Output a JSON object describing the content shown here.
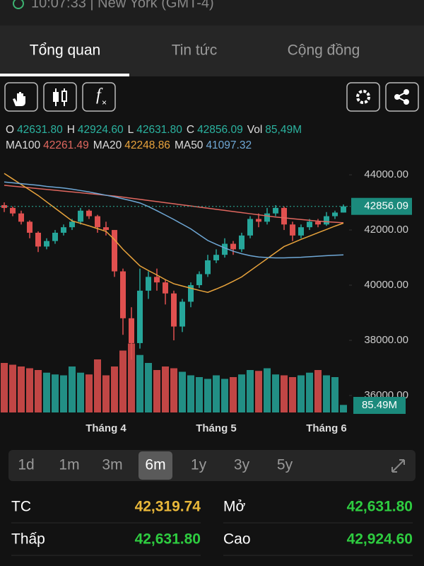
{
  "status": "10:07:33 | New York (GMT-4)",
  "tabs": [
    "Tổng quan",
    "Tin tức",
    "Cộng đồng"
  ],
  "toolbar": {
    "formula": "f"
  },
  "ohlc_legend": [
    {
      "key": "O",
      "value": "42631.80"
    },
    {
      "key": "H",
      "value": "42924.60"
    },
    {
      "key": "L",
      "value": "42631.80"
    },
    {
      "key": "C",
      "value": "42856.09"
    },
    {
      "key": "Vol",
      "value": "85,49M"
    }
  ],
  "chart_data": {
    "type": "candlestick",
    "categories": [
      null,
      null,
      null,
      null,
      null,
      null,
      null,
      null,
      null,
      null,
      null,
      null,
      "Tháng 4",
      null,
      null,
      null,
      null,
      null,
      null,
      null,
      null,
      null,
      null,
      null,
      null,
      "Tháng 5",
      null,
      null,
      null,
      null,
      null,
      null,
      null,
      null,
      null,
      null,
      null,
      null,
      "Tháng 6",
      null,
      null
    ],
    "open": [
      42900,
      42800,
      42600,
      42300,
      41900,
      41400,
      41600,
      41900,
      42100,
      42300,
      42700,
      42500,
      42100,
      42000,
      40500,
      38800,
      37900,
      39800,
      40300,
      40100,
      39700,
      38500,
      39400,
      40000,
      40400,
      40900,
      41100,
      41500,
      41300,
      41800,
      42400,
      42300,
      42600,
      42800,
      42200,
      41800,
      42100,
      42300,
      42200,
      42500,
      42631.8
    ],
    "high": [
      43000,
      42850,
      42700,
      42350,
      41950,
      41700,
      42000,
      42200,
      42400,
      42800,
      42750,
      42550,
      42300,
      42000,
      40600,
      39200,
      40600,
      40500,
      40600,
      40200,
      39800,
      39500,
      40100,
      40500,
      41100,
      41300,
      41700,
      41600,
      41900,
      42500,
      42600,
      42800,
      42900,
      42850,
      42300,
      42200,
      42400,
      42400,
      42650,
      42700,
      42924.6
    ],
    "low": [
      42650,
      42500,
      42200,
      41700,
      41200,
      41300,
      41500,
      41800,
      42000,
      42200,
      42400,
      41900,
      41800,
      40300,
      38200,
      37300,
      37700,
      39500,
      39800,
      39300,
      38000,
      38300,
      39200,
      39900,
      40300,
      40800,
      41000,
      41100,
      41200,
      41700,
      42100,
      42200,
      42500,
      42000,
      41600,
      41700,
      42000,
      42100,
      42150,
      42400,
      42631.8
    ],
    "close": [
      42800,
      42600,
      42300,
      41900,
      41400,
      41600,
      41900,
      42100,
      42300,
      42700,
      42500,
      42100,
      42000,
      40500,
      38800,
      37900,
      39800,
      40300,
      40100,
      39700,
      38500,
      39400,
      40000,
      40400,
      40900,
      41100,
      41500,
      41300,
      41800,
      42400,
      42300,
      42600,
      42800,
      42200,
      41800,
      42100,
      42300,
      42200,
      42500,
      42631.8,
      42856.09
    ],
    "volume": [
      560,
      540,
      520,
      500,
      480,
      450,
      430,
      420,
      520,
      450,
      430,
      600,
      420,
      520,
      700,
      780,
      650,
      560,
      480,
      520,
      500,
      460,
      420,
      400,
      380,
      420,
      380,
      400,
      430,
      480,
      470,
      500,
      430,
      420,
      400,
      420,
      450,
      480,
      420,
      400,
      85.49
    ],
    "volume_label": "85.49M",
    "vlim": [
      0,
      800
    ],
    "up_color": "#26a69a",
    "down_color": "#e0504f",
    "series": [
      {
        "name": "MA100",
        "color": "#e0675f",
        "values": [
          43620,
          43590,
          43560,
          43530,
          43500,
          43470,
          43440,
          43410,
          43380,
          43350,
          43320,
          43290,
          43260,
          43230,
          43190,
          43150,
          43110,
          43070,
          43030,
          42990,
          42950,
          42910,
          42870,
          42830,
          42790,
          42750,
          42710,
          42670,
          42630,
          42590,
          42550,
          42510,
          42470,
          42440,
          42410,
          42380,
          42350,
          42320,
          42300,
          42280,
          42261.49
        ]
      },
      {
        "name": "MA20",
        "color": "#e8a33c",
        "values": [
          44050,
          43850,
          43650,
          43450,
          43250,
          43020,
          42790,
          42560,
          42330,
          42240,
          42150,
          42050,
          41950,
          41650,
          41300,
          41000,
          40700,
          40530,
          40370,
          40200,
          40050,
          39970,
          39890,
          39810,
          39740,
          39860,
          39990,
          40140,
          40300,
          40520,
          40740,
          40960,
          41180,
          41400,
          41530,
          41660,
          41780,
          41900,
          42020,
          42140,
          42248.86
        ]
      },
      {
        "name": "MA50",
        "color": "#6fa8d6",
        "values": [
          43740,
          43710,
          43680,
          43650,
          43620,
          43580,
          43550,
          43520,
          43480,
          43430,
          43380,
          43320,
          43260,
          43200,
          43130,
          43060,
          42980,
          42850,
          42700,
          42540,
          42380,
          42210,
          42040,
          41830,
          41620,
          41480,
          41350,
          41230,
          41140,
          41070,
          41020,
          41000,
          40990,
          40990,
          41000,
          41010,
          41030,
          41050,
          41070,
          41085,
          41097.32
        ]
      }
    ],
    "ylim": [
      35000,
      44900
    ],
    "yticks": [
      {
        "value": 44000,
        "label": "44000.00"
      },
      {
        "value": 42000,
        "label": "42000.00"
      },
      {
        "value": 40000,
        "label": "40000.00"
      },
      {
        "value": 38000,
        "label": "38000.00"
      },
      {
        "value": 36000,
        "label": "36000.00"
      }
    ]
  },
  "ranges": [
    "1d",
    "1m",
    "3m",
    "6m",
    "1y",
    "3y",
    "5y"
  ],
  "selected_range": "6m",
  "stats": [
    [
      {
        "label": "TC",
        "value": "42,319.74"
      },
      {
        "label": "Mở",
        "value": "42,631.80"
      }
    ],
    [
      {
        "label": "Thấp",
        "value": "42,631.80"
      },
      {
        "label": "Cao",
        "value": "42,924.60"
      }
    ]
  ]
}
